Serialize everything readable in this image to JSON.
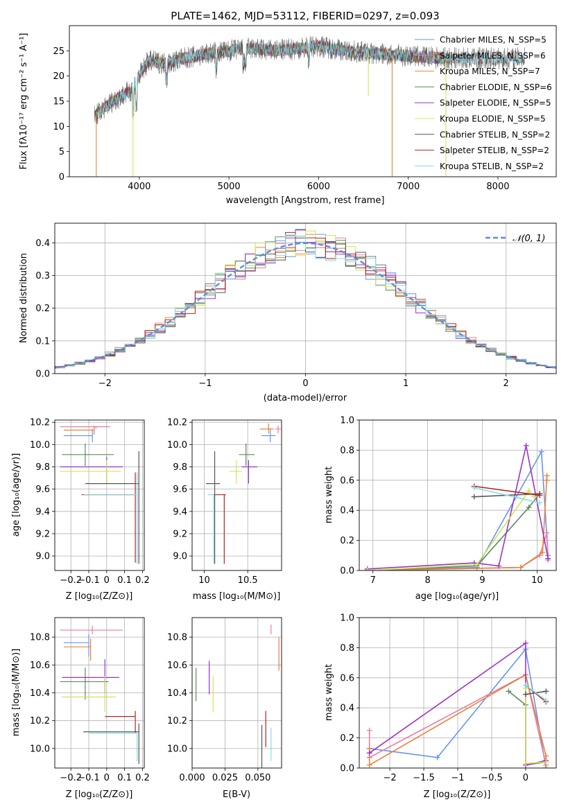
{
  "figure_title": "PLATE=1462, MJD=53112, FIBERID=0297, z=0.093",
  "colors": {
    "chabrier_miles": "#6495ed",
    "salpeter_miles": "#e87ca5",
    "kroupa_miles": "#e8833a",
    "chabrier_elodie": "#5b8a5b",
    "salpeter_elodie": "#9932cc",
    "kroupa_elodie": "#d4e157",
    "chabrier_stelib": "#555555",
    "salpeter_stelib": "#b22222",
    "kroupa_stelib": "#80deea",
    "grid": "#b0b0b0",
    "normal_curve": "#5b8fd6"
  },
  "chart_data": [
    {
      "id": "spectrum",
      "type": "line",
      "title": "PLATE=1462, MJD=53112, FIBERID=0297, z=0.093",
      "xlabel": "wavelength [Angstrom, rest frame]",
      "ylabel": "Flux [fλ10⁻¹⁷ erg cm⁻² s⁻¹ A⁻¹]",
      "xlim": [
        3220,
        8650
      ],
      "ylim": [
        0,
        30
      ],
      "xticks": [
        4000,
        5000,
        6000,
        7000,
        8000
      ],
      "yticks": [
        0,
        5,
        10,
        15,
        20,
        25
      ],
      "grid": false,
      "legend_position": "right",
      "legend": [
        "Chabrier MILES, N_SSP=5",
        "Salpeter MILES, N_SSP=6",
        "Kroupa MILES, N_SSP=7",
        "Chabrier ELODIE, N_SSP=6",
        "Salpeter ELODIE, N_SSP=5",
        "Kroupa ELODIE, N_SSP=5",
        "Chabrier STELIB, N_SSP=2",
        "Salpeter STELIB, N_SSP=2",
        "Kroupa STELIB, N_SSP=2"
      ],
      "continuum": {
        "x": [
          3500,
          3700,
          3900,
          4000,
          4100,
          4300,
          4500,
          4800,
          5000,
          5200,
          5500,
          5800,
          6000,
          6300,
          6600,
          7000,
          7400
        ],
        "y": [
          12,
          15,
          17,
          20,
          23,
          22.5,
          23.5,
          24.5,
          25,
          25.5,
          25,
          25.5,
          26,
          25,
          24.5,
          24,
          23.5
        ]
      },
      "spikes": [
        {
          "x": 3520,
          "y": 0
        },
        {
          "x": 3930,
          "y": 0
        },
        {
          "x": 6820,
          "y": 0
        },
        {
          "x": 7420,
          "y": 0
        },
        {
          "x": 6555,
          "y": 16
        }
      ]
    },
    {
      "id": "residuals",
      "type": "histogram",
      "xlabel": "(data-model)/error",
      "ylabel": "Normed distribution",
      "xlim": [
        -2.5,
        2.5
      ],
      "ylim": [
        0,
        0.46
      ],
      "xticks": [
        -2,
        -1,
        0,
        1,
        2
      ],
      "yticks": [
        0.0,
        0.1,
        0.2,
        0.3,
        0.4
      ],
      "grid": true,
      "legend_position": "top-right",
      "legend": [
        "𝒩(0, 1)"
      ],
      "bin_width": 0.1
    },
    {
      "id": "age_vs_Z",
      "type": "errorbar",
      "xlabel": "Z [log₁₀(Z/Z⊙)]",
      "ylabel": "age  [log₁₀(age/yr)]",
      "xlim": [
        -0.29,
        0.21
      ],
      "ylim": [
        8.87,
        10.22
      ],
      "xticks": [
        -0.2,
        -0.1,
        0.0,
        0.1,
        0.2
      ],
      "yticks": [
        9.0,
        9.2,
        9.4,
        9.6,
        9.8,
        10.0,
        10.2
      ],
      "grid": true,
      "points": [
        {
          "model": "chabrier_miles",
          "x": -0.08,
          "xerr": [
            0.16,
            0.0
          ],
          "y": 10.08,
          "yerr": [
            0.06,
            0.06
          ]
        },
        {
          "model": "salpeter_miles",
          "x": -0.06,
          "xerr": [
            0.2,
            0.08
          ],
          "y": 10.16,
          "yerr": [
            0.02,
            0.0
          ]
        },
        {
          "model": "kroupa_miles",
          "x": -0.07,
          "xerr": [
            0.17,
            0.0
          ],
          "y": 10.13,
          "yerr": [
            0.04,
            0.04
          ]
        },
        {
          "model": "chabrier_elodie",
          "x": -0.12,
          "xerr": [
            0.13,
            0.16
          ],
          "y": 9.91,
          "yerr": [
            0.1,
            0.1
          ]
        },
        {
          "model": "salpeter_elodie",
          "x": 0.0,
          "xerr": [
            0.26,
            0.09
          ],
          "y": 9.8,
          "yerr": [
            0.15,
            0.09
          ]
        },
        {
          "model": "kroupa_elodie",
          "x": 0.0,
          "xerr": [
            0.26,
            0.08
          ],
          "y": 9.76,
          "yerr": [
            0.11,
            0.1
          ]
        },
        {
          "model": "chabrier_stelib",
          "x": 0.18,
          "xerr": [
            0.3,
            0.0
          ],
          "y": 9.65,
          "yerr": [
            0.72,
            0.29
          ]
        },
        {
          "model": "salpeter_stelib",
          "x": 0.16,
          "xerr": [
            0.3,
            0.0
          ],
          "y": 9.55,
          "yerr": [
            0.61,
            0.2
          ]
        },
        {
          "model": "kroupa_stelib",
          "x": 0.17,
          "xerr": [
            0.3,
            0.0
          ],
          "y": 9.55,
          "yerr": [
            0.62,
            0.2
          ]
        }
      ]
    },
    {
      "id": "age_vs_mass",
      "type": "errorbar",
      "xlabel": "mass [log₁₀(M/M⊙)]",
      "ylabel": "",
      "xlim": [
        9.86,
        10.89
      ],
      "ylim": [
        8.87,
        10.22
      ],
      "xticks": [
        10.0,
        10.5
      ],
      "yticks": [
        9.0,
        9.2,
        9.4,
        9.6,
        9.8,
        10.0,
        10.2
      ],
      "grid": true,
      "points": [
        {
          "model": "chabrier_miles",
          "x": 10.76,
          "xerr": [
            0.1,
            0.06
          ],
          "y": 10.08,
          "yerr": [
            0.06,
            0.06
          ]
        },
        {
          "model": "salpeter_miles",
          "x": 10.85,
          "xerr": [
            0.03,
            0.03
          ],
          "y": 10.14,
          "yerr": [
            0.04,
            0.03
          ]
        },
        {
          "model": "kroupa_miles",
          "x": 10.74,
          "xerr": [
            0.1,
            0.06
          ],
          "y": 10.14,
          "yerr": [
            0.04,
            0.05
          ]
        },
        {
          "model": "chabrier_elodie",
          "x": 10.48,
          "xerr": [
            0.08,
            0.1
          ],
          "y": 9.91,
          "yerr": [
            0.1,
            0.1
          ]
        },
        {
          "model": "salpeter_elodie",
          "x": 10.51,
          "xerr": [
            0.08,
            0.1
          ],
          "y": 9.8,
          "yerr": [
            0.15,
            0.06
          ]
        },
        {
          "model": "kroupa_elodie",
          "x": 10.37,
          "xerr": [
            0.08,
            0.06
          ],
          "y": 9.76,
          "yerr": [
            0.11,
            0.1
          ]
        },
        {
          "model": "chabrier_stelib",
          "x": 10.12,
          "xerr": [
            0.1,
            0.06
          ],
          "y": 9.65,
          "yerr": [
            0.72,
            0.29
          ]
        },
        {
          "model": "salpeter_stelib",
          "x": 10.23,
          "xerr": [
            0.12,
            0.02
          ],
          "y": 9.55,
          "yerr": [
            0.62,
            0.0
          ]
        },
        {
          "model": "kroupa_stelib",
          "x": 10.11,
          "xerr": [
            0.07,
            0.0
          ],
          "y": 9.55,
          "yerr": [
            0.62,
            0.0
          ]
        }
      ]
    },
    {
      "id": "weight_vs_age",
      "type": "line",
      "xlabel": "age  [log₁₀(age/yr)]",
      "ylabel": "mass weight",
      "xlim": [
        6.75,
        10.35
      ],
      "ylim": [
        0,
        1
      ],
      "xticks": [
        7,
        8,
        9,
        10
      ],
      "yticks": [
        0.0,
        0.2,
        0.4,
        0.6,
        0.8,
        1.0
      ],
      "grid": true,
      "series": [
        {
          "model": "chabrier_miles",
          "x": [
            6.9,
            8.9,
            10.08,
            10.2
          ],
          "y": [
            0.0,
            0.02,
            0.79,
            0.1
          ]
        },
        {
          "model": "salpeter_miles",
          "x": [
            6.9,
            9.7,
            10.05,
            10.18,
            10.2
          ],
          "y": [
            0.0,
            0.02,
            0.1,
            0.25,
            0.07
          ]
        },
        {
          "model": "kroupa_miles",
          "x": [
            6.9,
            9.7,
            10.1,
            10.18,
            10.18
          ],
          "y": [
            0.0,
            0.02,
            0.12,
            0.63,
            0.6
          ]
        },
        {
          "model": "chabrier_elodie",
          "x": [
            6.9,
            8.9,
            9.85,
            10.05
          ],
          "y": [
            0.0,
            0.03,
            0.42,
            0.51
          ]
        },
        {
          "model": "salpeter_elodie",
          "x": [
            6.9,
            8.85,
            9.3,
            9.8,
            10.2
          ],
          "y": [
            0.01,
            0.05,
            0.03,
            0.83,
            0.08
          ]
        },
        {
          "model": "kroupa_elodie",
          "x": [
            6.9,
            8.9,
            9.85,
            9.95
          ],
          "y": [
            0.0,
            0.04,
            0.53,
            0.49
          ]
        },
        {
          "model": "chabrier_stelib",
          "x": [
            8.85,
            10.05
          ],
          "y": [
            0.49,
            0.51
          ]
        },
        {
          "model": "salpeter_stelib",
          "x": [
            8.85,
            10.05
          ],
          "y": [
            0.56,
            0.5
          ]
        },
        {
          "model": "kroupa_stelib",
          "x": [
            8.85,
            10.05
          ],
          "y": [
            0.55,
            0.45
          ]
        }
      ]
    },
    {
      "id": "mass_vs_Z",
      "type": "errorbar",
      "xlabel": "Z [log₁₀(Z/Z⊙)]",
      "ylabel": "mass [log₁₀(M/M⊙)]",
      "xlim": [
        -0.29,
        0.21
      ],
      "ylim": [
        9.86,
        10.94
      ],
      "xticks": [
        -0.2,
        -0.1,
        0.0,
        0.1,
        0.2
      ],
      "yticks": [
        10.0,
        10.2,
        10.4,
        10.6,
        10.8
      ],
      "grid": true,
      "points": [
        {
          "model": "chabrier_miles",
          "x": -0.1,
          "xerr": [
            0.14,
            0.0
          ],
          "y": 10.76,
          "yerr": [
            0.1,
            0.06
          ]
        },
        {
          "model": "salpeter_miles",
          "x": -0.08,
          "xerr": [
            0.18,
            0.17
          ],
          "y": 10.85,
          "yerr": [
            0.03,
            0.03
          ]
        },
        {
          "model": "kroupa_miles",
          "x": -0.09,
          "xerr": [
            0.15,
            0.0
          ],
          "y": 10.73,
          "yerr": [
            0.1,
            0.06
          ]
        },
        {
          "model": "chabrier_elodie",
          "x": -0.12,
          "xerr": [
            0.14,
            0.13
          ],
          "y": 10.48,
          "yerr": [
            0.13,
            0.1
          ]
        },
        {
          "model": "salpeter_elodie",
          "x": -0.01,
          "xerr": [
            0.24,
            0.08
          ],
          "y": 10.51,
          "yerr": [
            0.12,
            0.13
          ]
        },
        {
          "model": "kroupa_elodie",
          "x": -0.01,
          "xerr": [
            0.24,
            0.06
          ],
          "y": 10.37,
          "yerr": [
            0.11,
            0.15
          ]
        },
        {
          "model": "chabrier_stelib",
          "x": 0.18,
          "xerr": [
            0.31,
            0.0
          ],
          "y": 10.12,
          "yerr": [
            0.23,
            0.06
          ]
        },
        {
          "model": "salpeter_stelib",
          "x": 0.16,
          "xerr": [
            0.17,
            0.0
          ],
          "y": 10.23,
          "yerr": [
            0.12,
            0.04
          ]
        },
        {
          "model": "kroupa_stelib",
          "x": 0.17,
          "xerr": [
            0.27,
            0.0
          ],
          "y": 10.11,
          "yerr": [
            0.2,
            0.0
          ]
        }
      ]
    },
    {
      "id": "mass_vs_ebv",
      "type": "errorbar",
      "xlabel": "E(B-V)",
      "ylabel": "",
      "xlim": [
        0.0,
        0.068
      ],
      "ylim": [
        9.86,
        10.94
      ],
      "xticks": [
        0.0,
        0.025,
        0.05
      ],
      "xticklabels": [
        "0.000",
        "0.025",
        "0.050"
      ],
      "yticks": [
        10.0,
        10.2,
        10.4,
        10.6,
        10.8
      ],
      "grid": true,
      "points": [
        {
          "model": "chabrier_miles",
          "x": 0.06,
          "xerr": [
            0.0,
            0.0
          ],
          "y": 10.76,
          "yerr": [
            0.0,
            0.0
          ]
        },
        {
          "model": "salpeter_miles",
          "x": 0.06,
          "xerr": [
            0.0,
            0.0
          ],
          "y": 10.85,
          "yerr": [
            0.03,
            0.04
          ]
        },
        {
          "model": "kroupa_miles",
          "x": 0.066,
          "xerr": [
            0.0,
            0.0
          ],
          "y": 10.68,
          "yerr": [
            0.12,
            0.12
          ]
        },
        {
          "model": "chabrier_elodie",
          "x": 0.003,
          "xerr": [
            0.0,
            0.0
          ],
          "y": 10.46,
          "yerr": [
            0.12,
            0.12
          ]
        },
        {
          "model": "salpeter_elodie",
          "x": 0.013,
          "xerr": [
            0.0,
            0.0
          ],
          "y": 10.51,
          "yerr": [
            0.12,
            0.12
          ]
        },
        {
          "model": "kroupa_elodie",
          "x": 0.016,
          "xerr": [
            0.0,
            0.0
          ],
          "y": 10.39,
          "yerr": [
            0.13,
            0.13
          ]
        },
        {
          "model": "chabrier_stelib",
          "x": 0.053,
          "xerr": [
            0.0,
            0.0
          ],
          "y": 10.01,
          "yerr": [
            0.16,
            0.16
          ]
        },
        {
          "model": "salpeter_stelib",
          "x": 0.056,
          "xerr": [
            0.0,
            0.0
          ],
          "y": 10.14,
          "yerr": [
            0.13,
            0.13
          ]
        },
        {
          "model": "kroupa_stelib",
          "x": 0.06,
          "xerr": [
            0.0,
            0.0
          ],
          "y": 10.03,
          "yerr": [
            0.12,
            0.12
          ]
        }
      ]
    },
    {
      "id": "weight_vs_Z",
      "type": "line",
      "xlabel": "Z [log₁₀(Z/Z⊙)]",
      "ylabel": "mass weight",
      "xlim": [
        -2.45,
        0.45
      ],
      "ylim": [
        0,
        1
      ],
      "xticks": [
        -2.0,
        -1.5,
        -1.0,
        -0.5,
        0.0
      ],
      "yticks": [
        0.0,
        0.2,
        0.4,
        0.6,
        0.8,
        1.0
      ],
      "grid": true,
      "series": [
        {
          "model": "chabrier_miles",
          "x": [
            -2.3,
            -1.3,
            0.0,
            0.3
          ],
          "y": [
            0.13,
            0.07,
            0.79,
            0.0
          ]
        },
        {
          "model": "salpeter_miles",
          "x": [
            -2.3,
            -2.3,
            0.0,
            0.3
          ],
          "y": [
            0.25,
            0.07,
            0.62,
            0.02
          ]
        },
        {
          "model": "kroupa_miles",
          "x": [
            -2.3,
            -2.3,
            0.0,
            0.3,
            0.3
          ],
          "y": [
            0.13,
            0.02,
            0.62,
            0.08,
            0.0
          ]
        },
        {
          "model": "chabrier_elodie",
          "x": [
            -0.25,
            0.0,
            0.0,
            0.3
          ],
          "y": [
            0.51,
            0.42,
            0.02,
            0.04
          ]
        },
        {
          "model": "salpeter_elodie",
          "x": [
            -2.3,
            0.0,
            0.0,
            0.3
          ],
          "y": [
            0.1,
            0.83,
            0.02,
            0.05
          ]
        },
        {
          "model": "kroupa_elodie",
          "x": [
            0.0,
            0.0,
            0.3
          ],
          "y": [
            0.53,
            0.03,
            0.04
          ]
        },
        {
          "model": "chabrier_stelib",
          "x": [
            0.0,
            0.3
          ],
          "y": [
            0.49,
            0.51
          ]
        },
        {
          "model": "salpeter_stelib",
          "x": [
            0.0,
            0.3
          ],
          "y": [
            0.55,
            0.44
          ]
        },
        {
          "model": "kroupa_stelib",
          "x": [
            0.0,
            0.3
          ],
          "y": [
            0.55,
            0.45
          ]
        }
      ]
    }
  ]
}
